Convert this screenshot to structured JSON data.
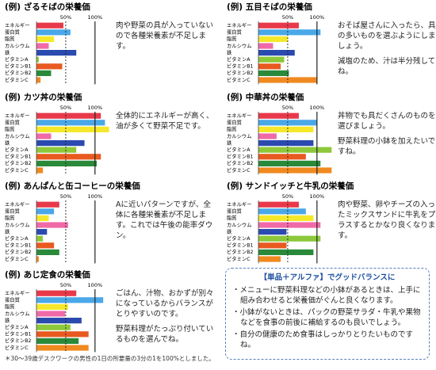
{
  "chart_data": [
    {
      "type": "bar",
      "title": "(例) ざるそばの栄養価",
      "categories": [
        "エネルギー",
        "蛋白質",
        "脂質",
        "カルシウム",
        "鉄",
        "ビタミンA",
        "ビタミンB1",
        "ビタミンB2",
        "ビタミンC"
      ],
      "values": [
        46,
        58,
        30,
        21,
        68,
        4,
        44,
        25,
        7
      ],
      "colors": [
        "#e8394a",
        "#4aa8e8",
        "#f5e82a",
        "#f06aa8",
        "#2a4ab0",
        "#8cc83a",
        "#e85a20",
        "#2a8a3a",
        "#f08a20"
      ],
      "xlim": [
        0,
        130
      ],
      "xticks": [
        {
          "value": 50,
          "label": "50%"
        },
        {
          "value": 100,
          "label": "100%"
        }
      ],
      "notes": [
        "肉や野菜の具が入っていないので各種栄養素が不足します。"
      ]
    },
    {
      "type": "bar",
      "title": "(例) 五目そばの栄養価",
      "categories": [
        "エネルギー",
        "蛋白質",
        "脂質",
        "カルシウム",
        "鉄",
        "ビタミンA",
        "ビタミンB1",
        "ビタミンB2",
        "ビタミンC"
      ],
      "values": [
        69,
        106,
        50,
        25,
        62,
        44,
        38,
        52,
        100
      ],
      "colors": [
        "#e8394a",
        "#4aa8e8",
        "#f5e82a",
        "#f06aa8",
        "#2a4ab0",
        "#8cc83a",
        "#e85a20",
        "#2a8a3a",
        "#f08a20"
      ],
      "xlim": [
        0,
        130
      ],
      "xticks": [
        {
          "value": 50,
          "label": "50%"
        },
        {
          "value": 100,
          "label": "100%"
        }
      ],
      "notes": [
        "おそば屋さんに入ったら、具の多いものを選ぶようにしましょう。",
        "減塩のため、汁は半分残してね。"
      ]
    },
    {
      "type": "bar",
      "title": "(例) カツ丼の栄養価",
      "categories": [
        "エネルギー",
        "蛋白質",
        "脂質",
        "カルシウム",
        "鉄",
        "ビタミンA",
        "ビタミンB1",
        "ビタミンB2",
        "ビタミンC"
      ],
      "values": [
        110,
        117,
        124,
        25,
        82,
        68,
        110,
        103,
        11
      ],
      "colors": [
        "#e8394a",
        "#4aa8e8",
        "#f5e82a",
        "#f06aa8",
        "#2a4ab0",
        "#8cc83a",
        "#e85a20",
        "#2a8a3a",
        "#f08a20"
      ],
      "xlim": [
        0,
        130
      ],
      "xticks": [
        {
          "value": 50,
          "label": "50%"
        },
        {
          "value": 100,
          "label": "100%"
        }
      ],
      "notes": [
        "全体的にエネルギーが高く、油が多くて野菜不足です。"
      ]
    },
    {
      "type": "bar",
      "title": "(例) 中華丼の栄養価",
      "categories": [
        "エネルギー",
        "蛋白質",
        "脂質",
        "カルシウム",
        "鉄",
        "ビタミンA",
        "ビタミンB1",
        "ビタミンB2",
        "ビタミンC"
      ],
      "values": [
        69,
        100,
        94,
        31,
        94,
        125,
        81,
        106,
        125
      ],
      "colors": [
        "#e8394a",
        "#4aa8e8",
        "#f5e82a",
        "#f06aa8",
        "#2a4ab0",
        "#8cc83a",
        "#e85a20",
        "#2a8a3a",
        "#f08a20"
      ],
      "xlim": [
        0,
        130
      ],
      "xticks": [
        {
          "value": 50,
          "label": "50%"
        },
        {
          "value": 100,
          "label": "100%"
        }
      ],
      "notes": [
        "丼物でも具だくさんのものを選びましょう。",
        "野菜料理の小鉢を加えたいですね。"
      ]
    },
    {
      "type": "bar",
      "title": "(例) あんぱんと缶コーヒーの栄養価",
      "categories": [
        "エネルギー",
        "蛋白質",
        "脂質",
        "カルシウム",
        "鉄",
        "ビタミンA",
        "ビタミンB1",
        "ビタミンB2",
        "ビタミンC"
      ],
      "values": [
        39,
        30,
        21,
        54,
        18,
        11,
        30,
        39,
        4
      ],
      "colors": [
        "#e8394a",
        "#4aa8e8",
        "#f5e82a",
        "#f06aa8",
        "#2a4ab0",
        "#8cc83a",
        "#e85a20",
        "#2a8a3a",
        "#f08a20"
      ],
      "xlim": [
        0,
        130
      ],
      "xticks": [
        {
          "value": 50,
          "label": "50%"
        },
        {
          "value": 100,
          "label": "100%"
        }
      ],
      "notes": [
        "Aに近いパターンですが、全体に各種栄養素が不足します。これでは午後の能率ダウン。"
      ]
    },
    {
      "type": "bar",
      "title": "(例) サンドイッチと牛乳の栄養価",
      "categories": [
        "エネルギー",
        "蛋白質",
        "脂質",
        "カルシウム",
        "鉄",
        "ビタミンA",
        "ビタミンB1",
        "ビタミンB2",
        "ビタミンC"
      ],
      "values": [
        69,
        81,
        94,
        106,
        48,
        106,
        48,
        94,
        38
      ],
      "colors": [
        "#e8394a",
        "#4aa8e8",
        "#f5e82a",
        "#f06aa8",
        "#2a4ab0",
        "#8cc83a",
        "#e85a20",
        "#2a8a3a",
        "#f08a20"
      ],
      "xlim": [
        0,
        130
      ],
      "xticks": [
        {
          "value": 50,
          "label": "50%"
        },
        {
          "value": 100,
          "label": "100%"
        }
      ],
      "notes": [
        "肉や野菜、卵やチーズの入ったミックスサンドに牛乳をプラスするとかなり良くなります。"
      ]
    },
    {
      "type": "bar",
      "title": "(例) あじ定食の栄養価",
      "categories": [
        "エネルギー",
        "蛋白質",
        "脂質",
        "カルシウム",
        "鉄",
        "ビタミンA",
        "ビタミンB1",
        "ビタミンB2",
        "ビタミンC"
      ],
      "values": [
        68,
        114,
        54,
        49,
        77,
        58,
        89,
        72,
        89
      ],
      "colors": [
        "#e8394a",
        "#4aa8e8",
        "#f5e82a",
        "#f06aa8",
        "#2a4ab0",
        "#8cc83a",
        "#e85a20",
        "#2a8a3a",
        "#f08a20"
      ],
      "xlim": [
        0,
        130
      ],
      "xticks": [
        {
          "value": 50,
          "label": "50%"
        },
        {
          "value": 100,
          "label": "100%"
        }
      ],
      "notes": [
        "ごはん、汁物、おかずが別々になっているからバランスがとりやすいのです。",
        "野菜料理がたっぷり付いているものを選んでね。"
      ]
    }
  ],
  "tips": {
    "title": "【単品＋アルファ】でグッドバランスに",
    "items": [
      "メニューに野菜料理などの小鉢があるときは、上手に組み合わせると栄養価がぐんと良くなります。",
      "小鉢がないときは、パックの野菜サラダ・牛乳や果物などを食事の前後に補給するのも良いでしょう。",
      "自分の健康のため食事はしっかりとりたいものですね。"
    ]
  },
  "footnote": "＊30～39歳デスクワークの男性の1日の所要量の3分の1を100%としました。"
}
